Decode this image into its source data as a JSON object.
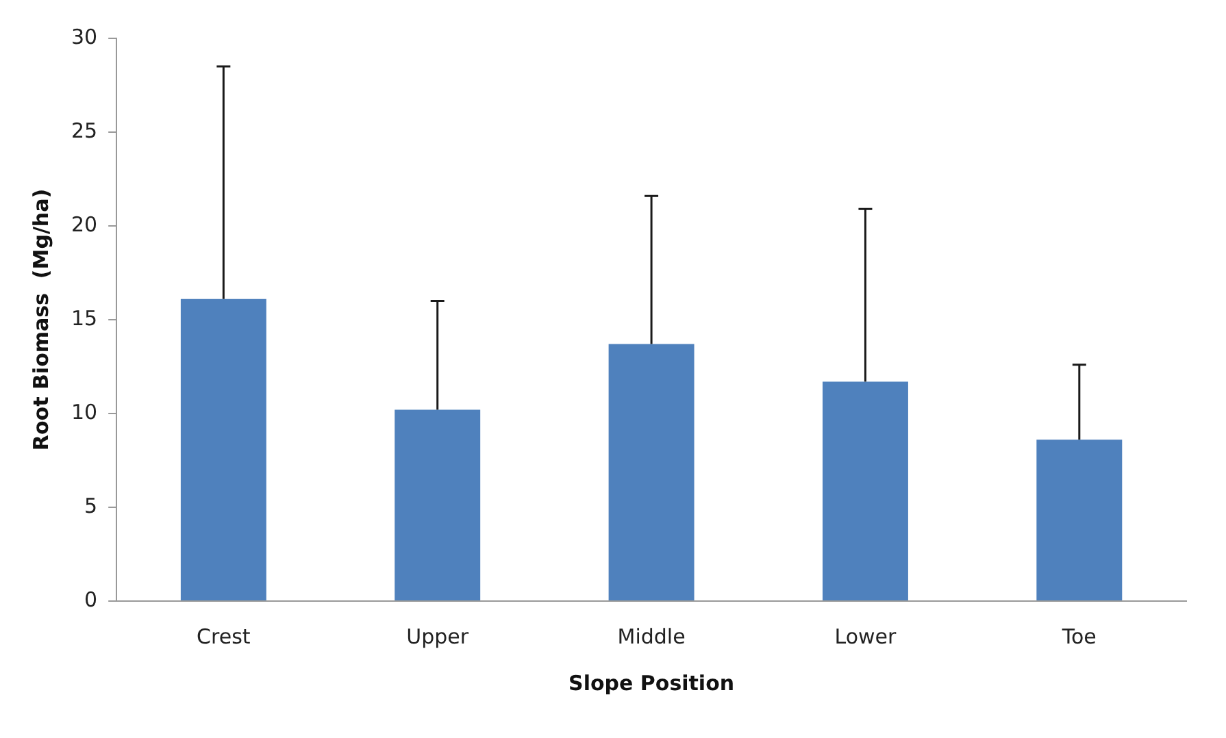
{
  "chart_data": {
    "type": "bar",
    "xlabel": "Slope Position",
    "ylabel": "Root Biomass  (Mg/ha)",
    "categories": [
      "Crest",
      "Upper",
      "Middle",
      "Lower",
      "Toe"
    ],
    "values": [
      16.1,
      10.2,
      13.7,
      11.7,
      8.6
    ],
    "errors": [
      [
        16.1,
        28.5
      ],
      [
        10.2,
        16.0
      ],
      [
        13.7,
        21.6
      ],
      [
        11.7,
        20.9
      ],
      [
        8.6,
        12.6
      ]
    ],
    "color": "#4f81bd",
    "ylim": [
      0,
      30
    ],
    "yticks": [
      0,
      5,
      10,
      15,
      20,
      25,
      30
    ],
    "grid": false,
    "legend": false
  }
}
